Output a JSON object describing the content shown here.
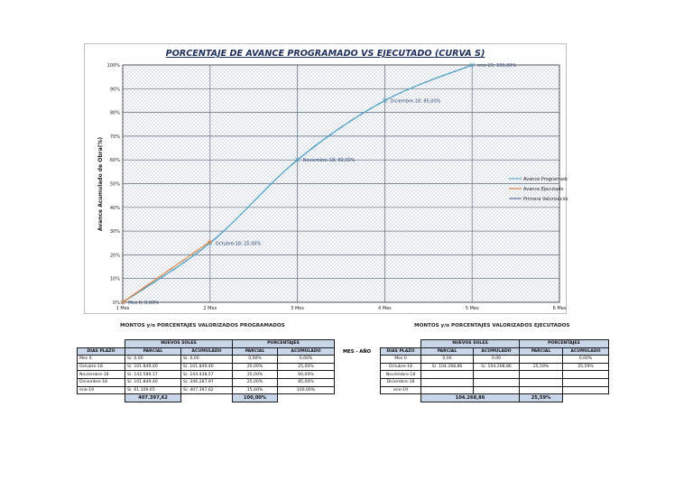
{
  "chart_data": {
    "type": "line",
    "title": "PORCENTAJE DE AVANCE PROGRAMADO VS EJECUTADO (CURVA S)",
    "ylabel": "Avance Acumulado de Obra(%)",
    "xlabel": "",
    "categories": [
      "1 Mes",
      "2 Mes",
      "3 Mes",
      "4 Mes",
      "5 Mes",
      "6 Mes"
    ],
    "ylim": [
      0,
      100
    ],
    "yticks": [
      "0%",
      "10%",
      "20%",
      "30%",
      "40%",
      "50%",
      "60%",
      "70%",
      "80%",
      "90%",
      "100%"
    ],
    "grid": true,
    "legend_position": "right",
    "series": [
      {
        "name": "Avance Programado",
        "color": "#4a9fc4",
        "x": [
          1,
          2,
          3,
          4,
          5
        ],
        "values": [
          0,
          25,
          60,
          85,
          100
        ]
      },
      {
        "name": "Avance Ejecutado",
        "color": "#e07b39",
        "x": [
          1,
          2
        ],
        "values": [
          0,
          25.59
        ]
      },
      {
        "name": "Primera Valorización",
        "color": "#3d5f8f",
        "x": [],
        "values": []
      }
    ],
    "annotations": [
      {
        "x": 1,
        "y": 0,
        "text": "Mes 0; 0,00%"
      },
      {
        "x": 2,
        "y": 25,
        "text": "Octubre-18; 25,00%"
      },
      {
        "x": 3,
        "y": 60,
        "text": "Noviembre-18; 60,00%"
      },
      {
        "x": 4,
        "y": 85,
        "text": "Diciembre-18; 85,00%"
      },
      {
        "x": 5,
        "y": 100,
        "text": "ene-19; 100,00%"
      }
    ]
  },
  "captions": {
    "programados": "MONTOS y/o PORCENTAJES VALORIZADOS PROGRAMADOS",
    "ejecutados": "MONTOS y/o PORCENTAJES VALORIZADOS EJECUTADOS",
    "mes_ano": "MES - AÑO"
  },
  "headers": {
    "nuevos_soles": "NUEVOS SOLES",
    "porcentajes": "PORCENTAJES",
    "dias_plazo": "DIAS PLAZO",
    "parcial": "PARCIAL",
    "acumulado": "ACUMULADO"
  },
  "programados": {
    "rows": [
      [
        "Mes 0",
        "S/. 0,00",
        "S/. 0,00",
        "0,00%",
        "0,00%"
      ],
      [
        "Octubre-18",
        "S/. 101.849,40",
        "S/. 101.849,40",
        "25,00%",
        "25,00%"
      ],
      [
        "Noviembre-18",
        "S/. 142.589,17",
        "S/. 244.438,57",
        "35,00%",
        "60,00%"
      ],
      [
        "Diciembre-18",
        "S/. 101.849,40",
        "S/. 346.287,97",
        "25,00%",
        "85,00%"
      ],
      [
        "ene-19",
        "S/. 61.109,65",
        "S/. 407.397,62",
        "15,00%",
        "100,00%"
      ]
    ],
    "total_soles": "407.397,62",
    "total_pct": "100,00%"
  },
  "ejecutados": {
    "rows": [
      [
        "Mes 0",
        "0,00",
        "0,00",
        "",
        "0,00%"
      ],
      [
        "Octubre-18",
        "S/. 104.268,86",
        "S/. 104.268,86",
        "25,59%",
        "25,59%"
      ],
      [
        "Noviembre-18",
        "",
        "",
        "",
        ""
      ],
      [
        "Diciembre-18",
        "",
        "",
        "",
        ""
      ],
      [
        "ene-19",
        "",
        "",
        "",
        ""
      ]
    ],
    "total_soles": "104.268,86",
    "total_pct": "25,59%"
  }
}
